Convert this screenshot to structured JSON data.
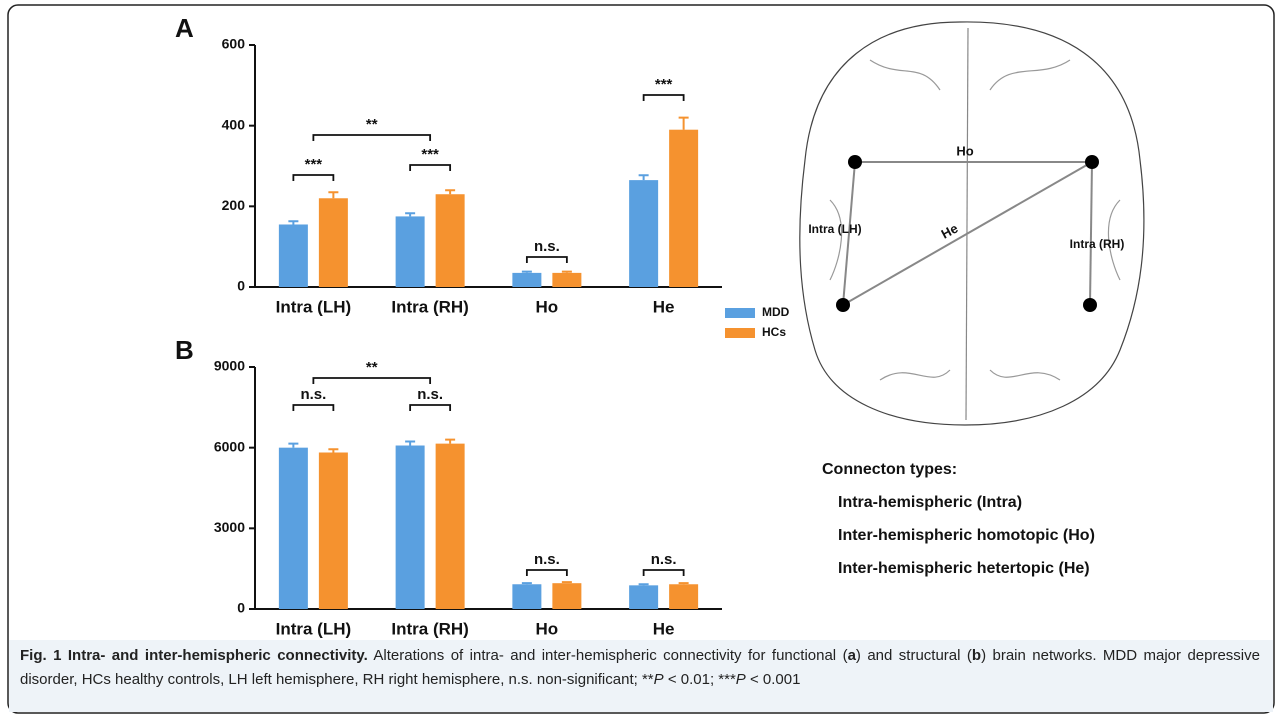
{
  "chart_data": [
    {
      "type": "bar",
      "panel_label": "A",
      "categories": [
        "Intra (LH)",
        "Intra (RH)",
        "Ho",
        "He"
      ],
      "series": [
        {
          "name": "MDD",
          "color": "#5aa0e0",
          "values": [
            155,
            175,
            35,
            265
          ],
          "errors": [
            8,
            8,
            3,
            12
          ]
        },
        {
          "name": "HCs",
          "color": "#f5922f",
          "values": [
            220,
            230,
            35,
            390
          ],
          "errors": [
            15,
            10,
            3,
            30
          ]
        }
      ],
      "ylim": [
        0,
        600
      ],
      "yticks": [
        0,
        200,
        400,
        600
      ],
      "annotations": [
        "***",
        "***",
        "n.s.",
        "***",
        "**"
      ]
    },
    {
      "type": "bar",
      "panel_label": "B",
      "categories": [
        "Intra (LH)",
        "Intra (RH)",
        "Ho",
        "He"
      ],
      "series": [
        {
          "color": "#5aa0e0",
          "values": [
            6000,
            6080,
            920,
            880
          ],
          "errors": [
            150,
            150,
            40,
            40
          ]
        },
        {
          "color": "#f5922f",
          "values": [
            5820,
            6150,
            960,
            920
          ],
          "errors": [
            120,
            150,
            40,
            40
          ]
        }
      ],
      "ylim": [
        0,
        9000
      ],
      "yticks": [
        0,
        3000,
        6000,
        9000
      ],
      "annotations": [
        "n.s.",
        "n.s.",
        "n.s.",
        "n.s.",
        "**"
      ]
    }
  ],
  "diagram": {
    "labels": [
      "Ho",
      "He",
      "Intra (LH)",
      "Intra (RH)"
    ]
  },
  "connection_types": {
    "title": "Connecton types:",
    "items": [
      "Intra-hemispheric (Intra)",
      "Inter-hemispheric homotopic (Ho)",
      "Inter-hemispheric hetertopic (He)"
    ]
  },
  "caption": {
    "label": "Fig. 1",
    "title": "Intra- and inter-hemispheric connectivity.",
    "parts": [
      "Alterations of intra- and inter-hemispheric connectivity for functional (",
      "a",
      ") and structural (",
      "b",
      ") brain networks. MDD major depressive disorder, HCs healthy controls, LH left hemisphere, RH right hemisphere, n.s. non-significant; **",
      "P",
      " < 0.01; ***",
      "P",
      " < 0.001"
    ]
  }
}
